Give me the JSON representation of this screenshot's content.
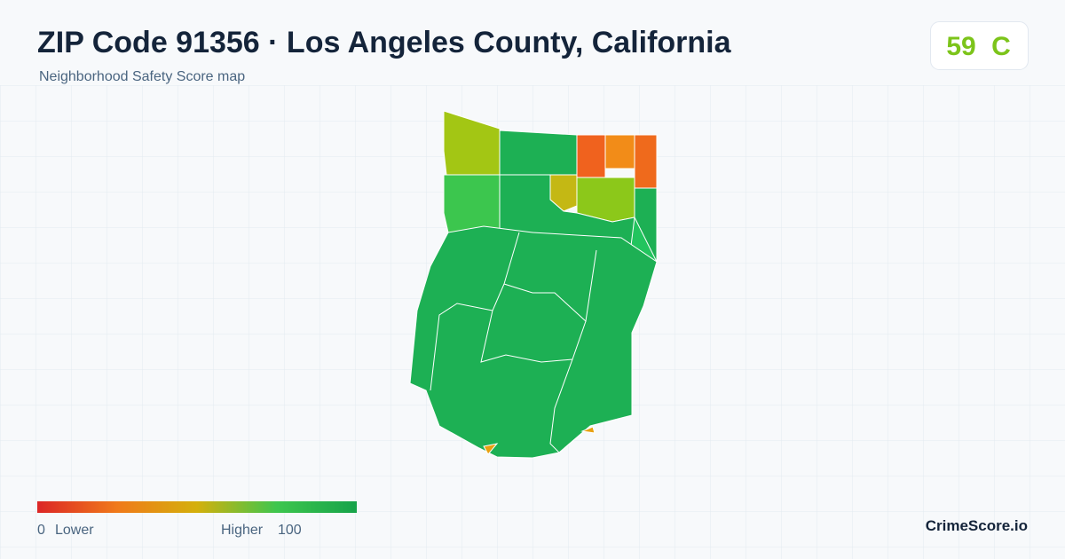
{
  "header": {
    "title": "ZIP Code 91356 · Los Angeles County, California",
    "subtitle": "Neighborhood Safety Score map"
  },
  "score": {
    "value": 59,
    "grade": "C"
  },
  "legend": {
    "min": 0,
    "min_label": "Lower",
    "max_label": "Higher",
    "max": 100
  },
  "brand": "CrimeScore.io"
}
